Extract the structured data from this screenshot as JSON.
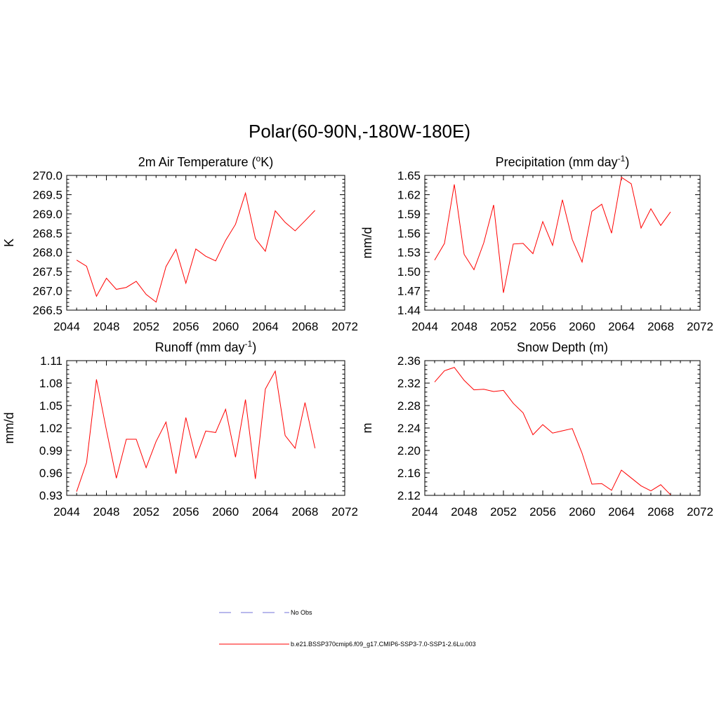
{
  "main_title": "Polar(60-90N,-180W-180E)",
  "colors": {
    "model_line": "#ff0000",
    "obs_line": "#a0a0e6",
    "axis": "#000000"
  },
  "legend": {
    "obs_label": "No Obs",
    "model_label": "b.e21.BSSP370cmip6.f09_g17.CMIP6-SSP3-7.0-SSP1-2.6Lu.003"
  },
  "panels": [
    {
      "title": "2m Air Temperature (",
      "title_sup_pre": "o",
      "title_post": "K)",
      "ylabel": "K",
      "xlim": [
        2044,
        2072
      ],
      "ylim": [
        266.5,
        270.0
      ],
      "x_ticks": [
        "2044",
        "2048",
        "2052",
        "2056",
        "2060",
        "2064",
        "2068",
        "2072"
      ],
      "y_ticks": [
        "266.5",
        "267.0",
        "267.5",
        "268.0",
        "268.5",
        "269.0",
        "269.5",
        "270.0"
      ]
    },
    {
      "title": "Precipitation (mm day",
      "title_sup": "-1",
      "title_post": ")",
      "ylabel": "mm/d",
      "xlim": [
        2044,
        2072
      ],
      "ylim": [
        1.44,
        1.65
      ],
      "x_ticks": [
        "2044",
        "2048",
        "2052",
        "2056",
        "2060",
        "2064",
        "2068",
        "2072"
      ],
      "y_ticks": [
        "1.44",
        "1.47",
        "1.50",
        "1.53",
        "1.56",
        "1.59",
        "1.62",
        "1.65"
      ]
    },
    {
      "title": "Runoff (mm day",
      "title_sup": "-1",
      "title_post": ")",
      "ylabel": "mm/d",
      "xlim": [
        2044,
        2072
      ],
      "ylim": [
        0.93,
        1.11
      ],
      "x_ticks": [
        "2044",
        "2048",
        "2052",
        "2056",
        "2060",
        "2064",
        "2068",
        "2072"
      ],
      "y_ticks": [
        "0.93",
        "0.96",
        "0.99",
        "1.02",
        "1.05",
        "1.08",
        "1.11"
      ]
    },
    {
      "title": "Snow Depth (m)",
      "title_sup": "",
      "title_post": "",
      "ylabel": "m",
      "xlim": [
        2044,
        2072
      ],
      "ylim": [
        2.12,
        2.36
      ],
      "x_ticks": [
        "2044",
        "2048",
        "2052",
        "2056",
        "2060",
        "2064",
        "2068",
        "2072"
      ],
      "y_ticks": [
        "2.12",
        "2.16",
        "2.20",
        "2.24",
        "2.28",
        "2.32",
        "2.36"
      ]
    }
  ],
  "chart_data": [
    {
      "type": "line",
      "title": "2m Air Temperature (oK)",
      "xlabel": "",
      "ylabel": "K",
      "xlim": [
        2044,
        2072
      ],
      "ylim": [
        266.5,
        270.0
      ],
      "grid": false,
      "x": [
        2045,
        2046,
        2047,
        2048,
        2049,
        2050,
        2051,
        2052,
        2053,
        2054,
        2055,
        2056,
        2057,
        2058,
        2059,
        2060,
        2061,
        2062,
        2063,
        2064,
        2065,
        2066,
        2067,
        2068,
        2069
      ],
      "series": [
        {
          "name": "b.e21.BSSP370cmip6.f09_g17.CMIP6-SSP3-7.0-SSP1-2.6Lu.003",
          "values": [
            267.8,
            267.64,
            266.86,
            267.33,
            267.04,
            267.09,
            267.25,
            266.91,
            266.71,
            267.63,
            268.08,
            267.2,
            268.09,
            267.9,
            267.78,
            268.31,
            268.73,
            269.54,
            268.36,
            268.03,
            269.08,
            268.78,
            268.56,
            268.82,
            269.09
          ]
        }
      ]
    },
    {
      "type": "line",
      "title": "Precipitation (mm day-1)",
      "xlabel": "",
      "ylabel": "mm/d",
      "xlim": [
        2044,
        2072
      ],
      "ylim": [
        1.44,
        1.65
      ],
      "grid": false,
      "x": [
        2045,
        2046,
        2047,
        2048,
        2049,
        2050,
        2051,
        2052,
        2053,
        2054,
        2055,
        2056,
        2057,
        2058,
        2059,
        2060,
        2061,
        2062,
        2063,
        2064,
        2065,
        2066,
        2067,
        2068,
        2069
      ],
      "series": [
        {
          "name": "b.e21.BSSP370cmip6.f09_g17.CMIP6-SSP3-7.0-SSP1-2.6Lu.003",
          "values": [
            1.518,
            1.544,
            1.636,
            1.527,
            1.503,
            1.545,
            1.604,
            1.467,
            1.543,
            1.544,
            1.528,
            1.578,
            1.541,
            1.612,
            1.55,
            1.515,
            1.594,
            1.605,
            1.56,
            1.647,
            1.637,
            1.568,
            1.598,
            1.572,
            1.593
          ]
        }
      ]
    },
    {
      "type": "line",
      "title": "Runoff (mm day-1)",
      "xlabel": "",
      "ylabel": "mm/d",
      "xlim": [
        2044,
        2072
      ],
      "ylim": [
        0.93,
        1.11
      ],
      "grid": false,
      "x": [
        2045,
        2046,
        2047,
        2048,
        2049,
        2050,
        2051,
        2052,
        2053,
        2054,
        2055,
        2056,
        2057,
        2058,
        2059,
        2060,
        2061,
        2062,
        2063,
        2064,
        2065,
        2066,
        2067,
        2068,
        2069
      ],
      "series": [
        {
          "name": "b.e21.BSSP370cmip6.f09_g17.CMIP6-SSP3-7.0-SSP1-2.6Lu.003",
          "values": [
            0.935,
            0.974,
            1.085,
            1.017,
            0.953,
            1.005,
            1.005,
            0.967,
            1.002,
            1.028,
            0.959,
            1.034,
            0.98,
            1.016,
            1.014,
            1.045,
            0.981,
            1.058,
            0.952,
            1.072,
            1.096,
            1.01,
            0.993,
            1.054,
            0.993
          ]
        }
      ]
    },
    {
      "type": "line",
      "title": "Snow Depth (m)",
      "xlabel": "",
      "ylabel": "m",
      "xlim": [
        2044,
        2072
      ],
      "ylim": [
        2.12,
        2.36
      ],
      "grid": false,
      "x": [
        2045,
        2046,
        2047,
        2048,
        2049,
        2050,
        2051,
        2052,
        2053,
        2054,
        2055,
        2056,
        2057,
        2058,
        2059,
        2060,
        2061,
        2062,
        2063,
        2064,
        2065,
        2066,
        2067,
        2068,
        2069
      ],
      "series": [
        {
          "name": "b.e21.BSSP370cmip6.f09_g17.CMIP6-SSP3-7.0-SSP1-2.6Lu.003",
          "values": [
            2.322,
            2.342,
            2.348,
            2.325,
            2.308,
            2.309,
            2.305,
            2.307,
            2.284,
            2.267,
            2.228,
            2.246,
            2.231,
            2.235,
            2.239,
            2.195,
            2.14,
            2.141,
            2.129,
            2.165,
            2.151,
            2.137,
            2.128,
            2.139,
            2.121
          ]
        }
      ]
    }
  ]
}
